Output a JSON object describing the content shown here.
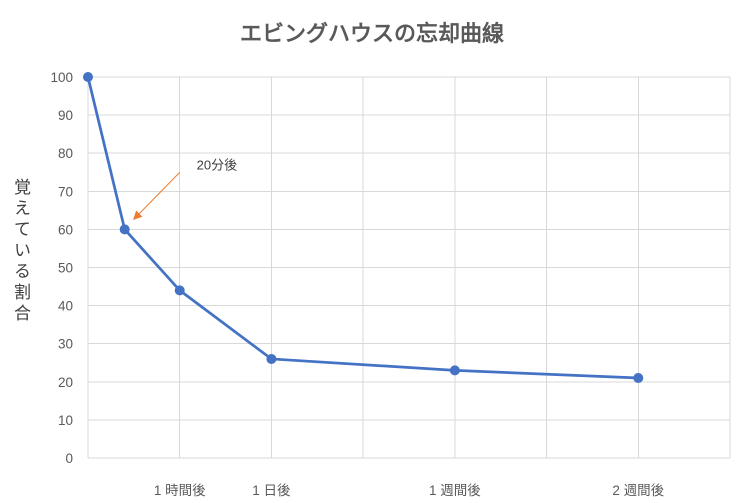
{
  "chart_data": {
    "type": "line",
    "title": "エビングハウスの忘却曲線",
    "ylabel": "覚えている割合",
    "ylim": [
      0,
      100
    ],
    "yticks": [
      0,
      10,
      20,
      30,
      40,
      50,
      60,
      70,
      80,
      90,
      100
    ],
    "xlim": [
      0,
      7
    ],
    "x_tick_labels": [
      {
        "x": 1,
        "label": "1 時間後"
      },
      {
        "x": 2,
        "label": "1 日後"
      },
      {
        "x": 4,
        "label": "1 週間後"
      },
      {
        "x": 6,
        "label": "2 週間後"
      }
    ],
    "series": [
      {
        "x": [
          0,
          0.4,
          1,
          2,
          4,
          6
        ],
        "y": [
          100,
          60,
          44,
          26,
          23,
          21
        ]
      }
    ],
    "annotations": [
      {
        "text": "20分後",
        "x": 0.4,
        "y": 60
      }
    ],
    "grid": true,
    "legend": "none",
    "colors": {
      "line": "#4472C4",
      "marker": "#4472C4",
      "arrow": "#ED7D31",
      "grid": "#D9D9D9"
    }
  }
}
